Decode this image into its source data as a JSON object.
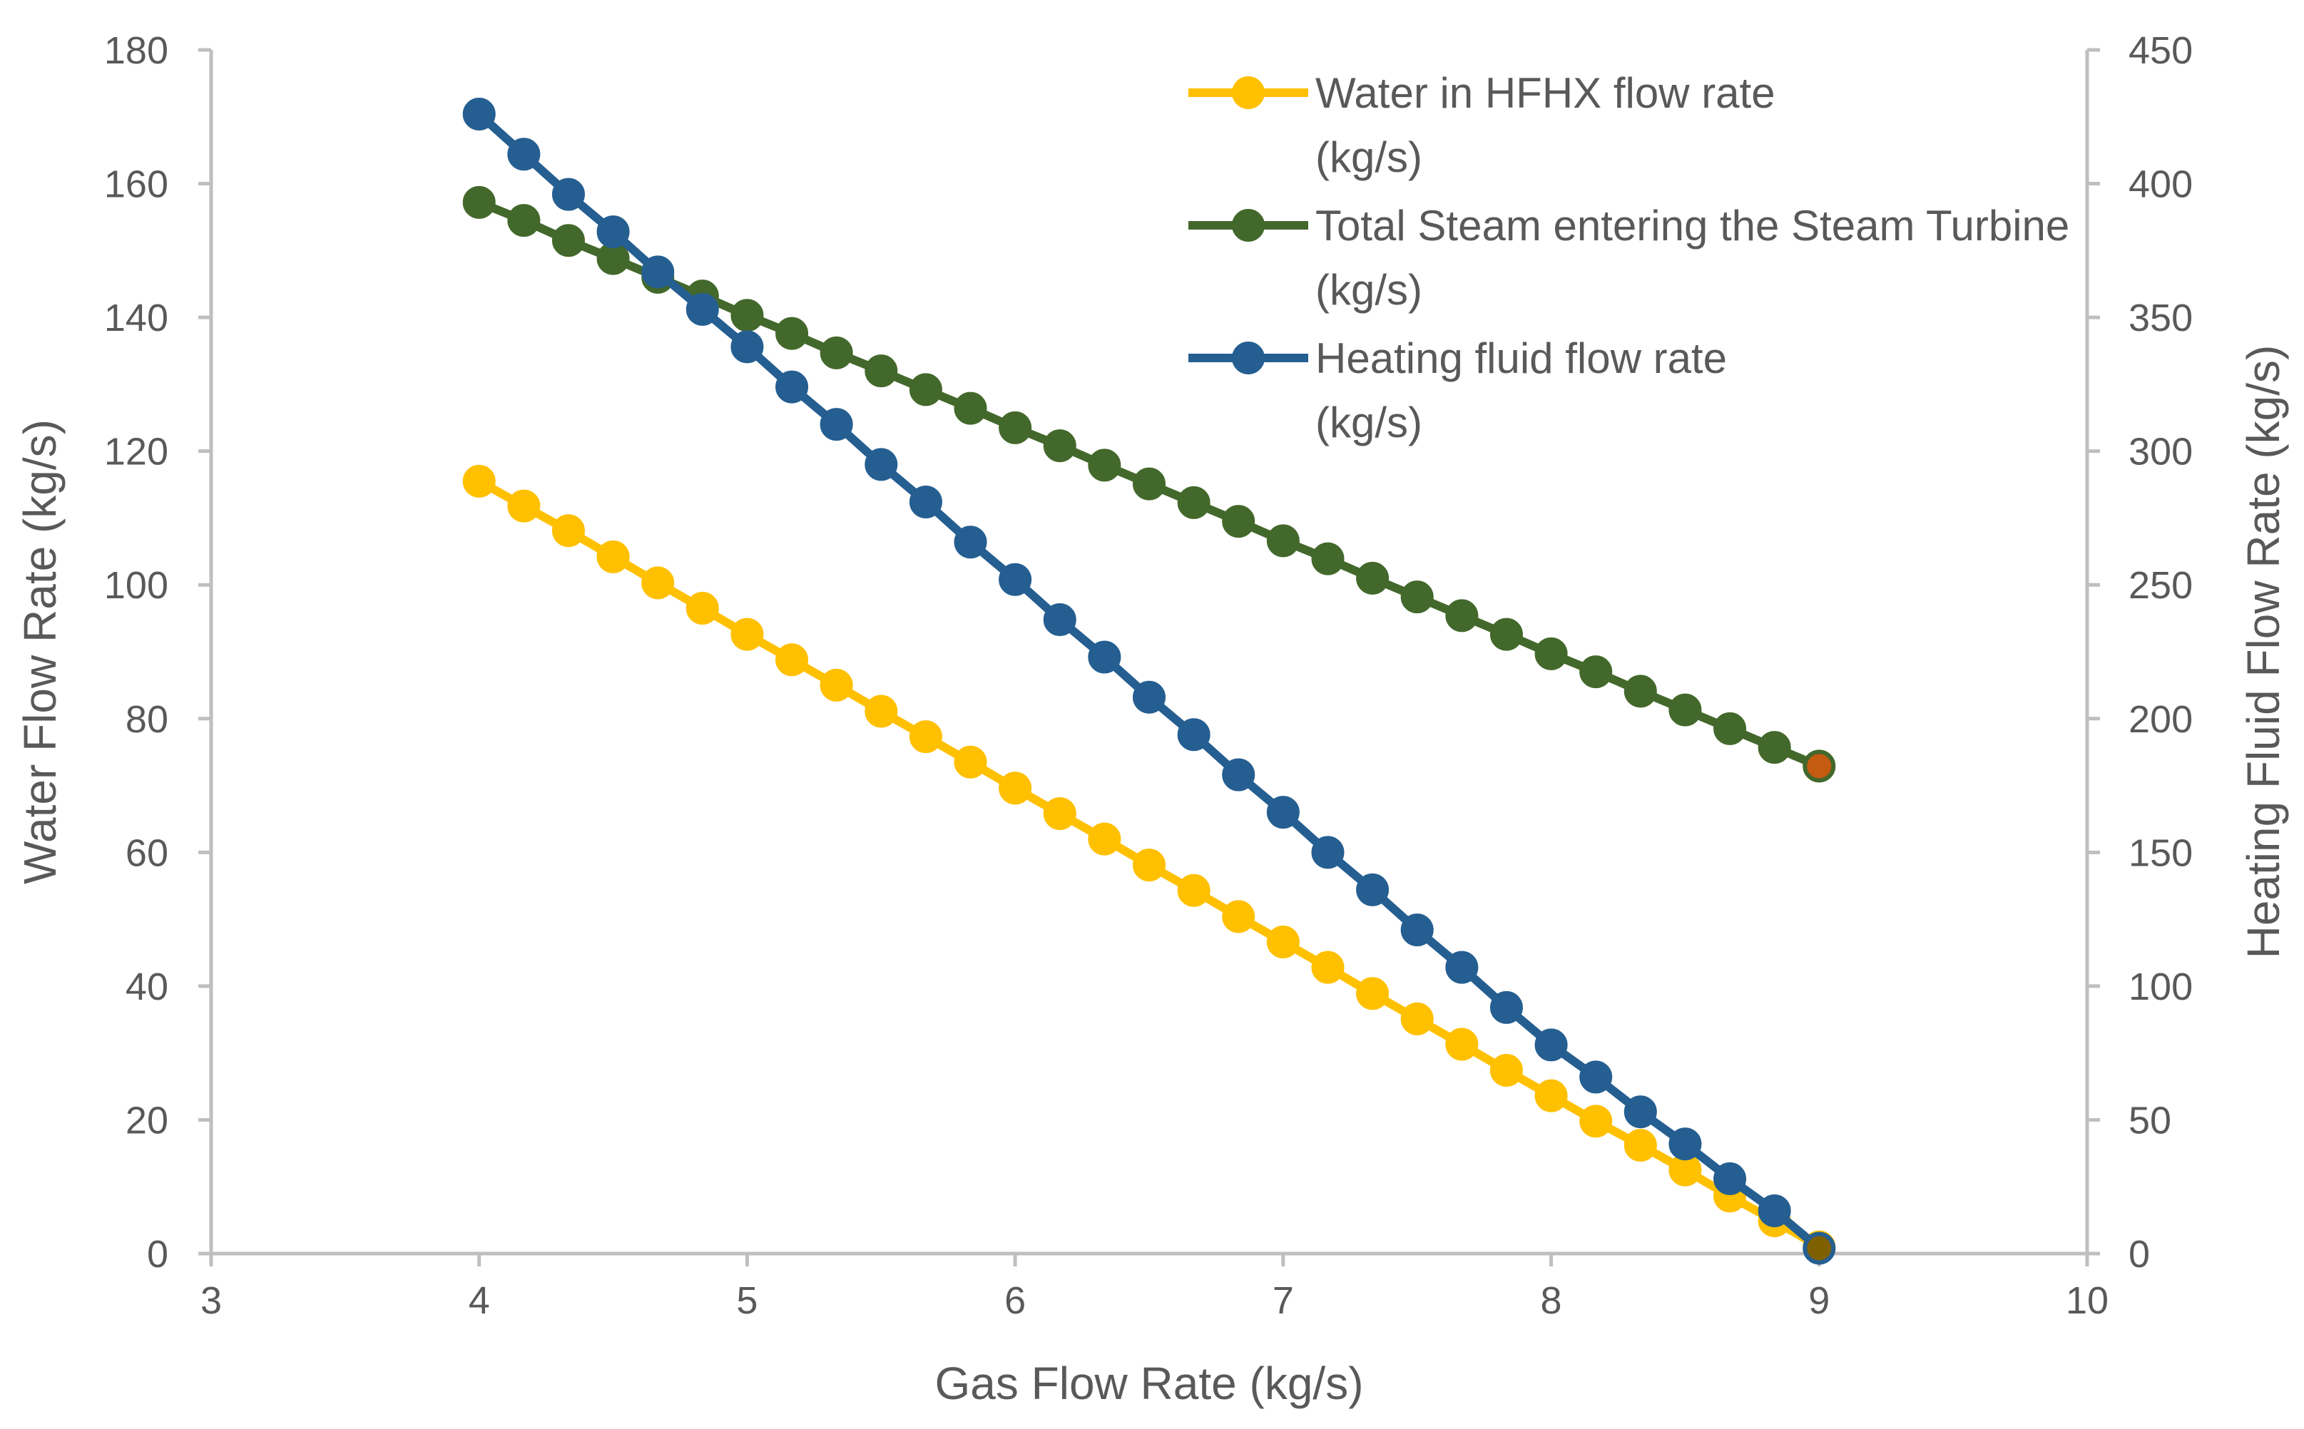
{
  "chart_data": {
    "type": "line",
    "title": "",
    "xlabel": "Gas Flow Rate (kg/s)",
    "ylabel_left": "Water Flow Rate (kg/s)",
    "ylabel_right": "Heating Fluid Flow Rate (kg/s)",
    "xlim": [
      3,
      10
    ],
    "ylim_left": [
      0,
      180
    ],
    "ylim_right": [
      0,
      450
    ],
    "x_ticks": [
      3,
      4,
      5,
      6,
      7,
      8,
      9,
      10
    ],
    "y_left_ticks": [
      0,
      20,
      40,
      60,
      80,
      100,
      120,
      140,
      160,
      180
    ],
    "y_right_ticks": [
      0,
      50,
      100,
      150,
      200,
      250,
      300,
      350,
      400,
      450
    ],
    "grid": false,
    "legend_position": "top-right",
    "x": [
      4.0,
      4.1667,
      4.3333,
      4.5,
      4.6667,
      4.8333,
      5.0,
      5.1667,
      5.3333,
      5.5,
      5.6667,
      5.8333,
      6.0,
      6.1667,
      6.3333,
      6.5,
      6.6667,
      6.8333,
      7.0,
      7.1667,
      7.3333,
      7.5,
      7.6667,
      7.8333,
      8.0,
      8.1667,
      8.3333,
      8.5,
      8.6667,
      8.8333,
      9.0
    ],
    "series": [
      {
        "name": "Water in HFHX flow rate (kg/s)",
        "legend_lines": [
          "Water in HFHX flow rate",
          "(kg/s)"
        ],
        "axis": "left",
        "color": "#FFC000",
        "values": [
          115.5,
          111.8,
          108.1,
          104.2,
          100.3,
          96.5,
          92.6,
          88.8,
          85.0,
          81.1,
          77.3,
          73.5,
          69.6,
          65.8,
          62.0,
          58.1,
          54.3,
          50.4,
          46.6,
          42.8,
          38.9,
          35.1,
          31.3,
          27.4,
          23.6,
          19.8,
          16.2,
          12.5,
          8.6,
          4.9,
          1.0
        ]
      },
      {
        "name": "Total Steam entering the Steam Turbine (kg/s)",
        "legend_lines": [
          "Total Steam entering the Steam Turbine",
          "(kg/s)"
        ],
        "axis": "left",
        "color": "#43682B",
        "values": [
          157.2,
          154.5,
          151.5,
          148.8,
          146.0,
          143.2,
          140.3,
          137.6,
          134.7,
          132.0,
          129.2,
          126.4,
          123.5,
          120.8,
          117.9,
          115.1,
          112.3,
          109.5,
          106.6,
          103.9,
          101.0,
          98.2,
          95.4,
          92.6,
          89.7,
          87.0,
          84.1,
          81.3,
          78.5,
          75.7,
          72.9
        ]
      },
      {
        "name": "Heating fluid flow rate (kg/s)",
        "legend_lines": [
          "Heating fluid flow rate",
          "(kg/s)"
        ],
        "axis": "right",
        "color": "#255E91",
        "values": [
          426,
          411,
          396,
          382,
          367,
          353,
          339,
          324,
          310,
          295,
          281,
          266,
          252,
          237,
          223,
          208,
          194,
          179,
          165,
          150,
          136,
          121,
          107,
          92,
          78,
          66,
          53,
          41,
          28,
          16,
          2
        ]
      }
    ],
    "last_point_marker_colors": {
      "Water in HFHX flow rate (kg/s)": "#7F6000",
      "Total Steam entering the Steam Turbine (kg/s)": "#C55A11",
      "Heating fluid flow rate (kg/s)": "#7F6000"
    }
  }
}
